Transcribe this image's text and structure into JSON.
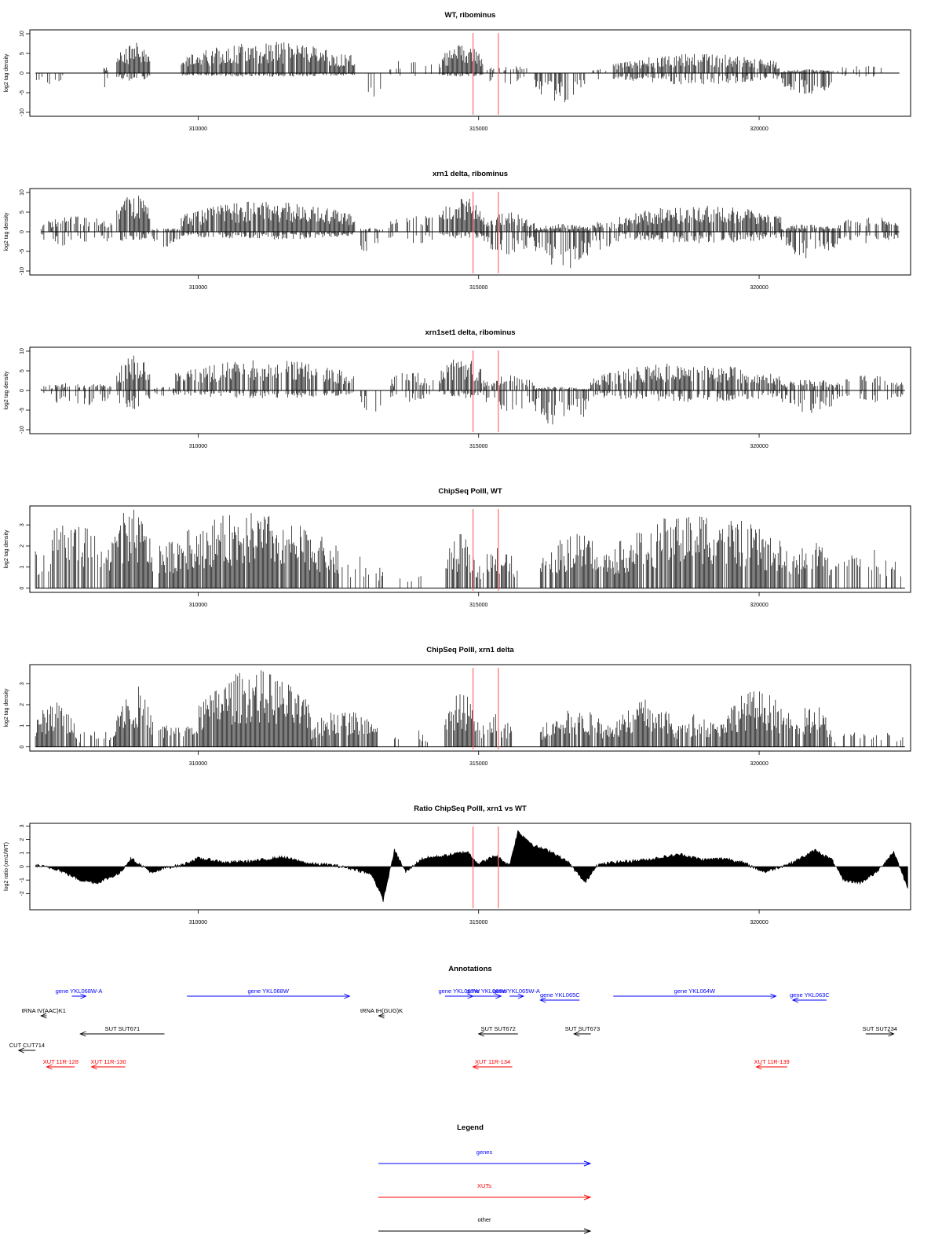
{
  "chart_data": [
    {
      "type": "bar",
      "title": "WT, ribominus",
      "ylabel": "log2 tag density",
      "ylim": [
        -11,
        11
      ],
      "yticks": [
        -10,
        -5,
        0,
        5,
        10
      ],
      "xlim": [
        307000,
        322700
      ],
      "xticks": [
        310000,
        315000,
        320000
      ],
      "marker_lines": [
        314900,
        315350
      ],
      "regions": [
        {
          "start": 307100,
          "end": 307600,
          "min": -3,
          "max": 0,
          "density": 0.35
        },
        {
          "start": 308300,
          "end": 308400,
          "min": -4,
          "max": 2,
          "density": 0.6
        },
        {
          "start": 308550,
          "end": 309150,
          "min": -2,
          "max": 8,
          "density": 0.95
        },
        {
          "start": 309150,
          "end": 309350,
          "min": -2,
          "max": 0,
          "density": 0.3
        },
        {
          "start": 309700,
          "end": 312800,
          "min": -1,
          "max": 8,
          "density": 0.9
        },
        {
          "start": 313000,
          "end": 313300,
          "min": -7,
          "max": 0,
          "density": 0.4
        },
        {
          "start": 313400,
          "end": 314200,
          "min": -1,
          "max": 4,
          "density": 0.2
        },
        {
          "start": 314300,
          "end": 315100,
          "min": -1,
          "max": 7.5,
          "density": 0.95
        },
        {
          "start": 315100,
          "end": 315900,
          "min": -3,
          "max": 2,
          "density": 0.3
        },
        {
          "start": 316000,
          "end": 316900,
          "min": -8,
          "max": 0,
          "density": 0.95
        },
        {
          "start": 317000,
          "end": 317300,
          "min": -3,
          "max": 1,
          "density": 0.3
        },
        {
          "start": 317400,
          "end": 320400,
          "min": -3,
          "max": 5,
          "density": 0.85
        },
        {
          "start": 320400,
          "end": 321300,
          "min": -6,
          "max": 1,
          "density": 0.8
        },
        {
          "start": 321300,
          "end": 322500,
          "min": -1,
          "max": 2,
          "density": 0.15
        }
      ]
    },
    {
      "type": "bar",
      "title": "xrn1 delta, ribominus",
      "ylabel": "log2 tag density",
      "ylim": [
        -11,
        11
      ],
      "yticks": [
        -10,
        -5,
        0,
        5,
        10
      ],
      "xlim": [
        307000,
        322700
      ],
      "xticks": [
        310000,
        315000,
        320000
      ],
      "marker_lines": [
        314900,
        315350
      ],
      "regions": [
        {
          "start": 307200,
          "end": 308500,
          "min": -4,
          "max": 4,
          "density": 0.7
        },
        {
          "start": 308550,
          "end": 309150,
          "min": -3,
          "max": 10,
          "density": 0.95
        },
        {
          "start": 309150,
          "end": 309700,
          "min": -4,
          "max": 1,
          "density": 0.5
        },
        {
          "start": 309700,
          "end": 312800,
          "min": -2,
          "max": 8,
          "density": 0.95
        },
        {
          "start": 312800,
          "end": 313300,
          "min": -7,
          "max": 1,
          "density": 0.5
        },
        {
          "start": 313400,
          "end": 314300,
          "min": -3,
          "max": 5,
          "density": 0.4
        },
        {
          "start": 314300,
          "end": 315100,
          "min": -2,
          "max": 9,
          "density": 0.95
        },
        {
          "start": 315100,
          "end": 316000,
          "min": -6,
          "max": 5,
          "density": 0.8
        },
        {
          "start": 316000,
          "end": 317000,
          "min": -10,
          "max": 2,
          "density": 0.95
        },
        {
          "start": 317000,
          "end": 317500,
          "min": -5,
          "max": 3,
          "density": 0.7
        },
        {
          "start": 317500,
          "end": 320400,
          "min": -3,
          "max": 7,
          "density": 0.9
        },
        {
          "start": 320400,
          "end": 321400,
          "min": -7,
          "max": 2,
          "density": 0.85
        },
        {
          "start": 321400,
          "end": 322500,
          "min": -3,
          "max": 4,
          "density": 0.5
        }
      ]
    },
    {
      "type": "bar",
      "title": "xrn1set1 delta, ribominus",
      "ylabel": "log2 tag density",
      "ylim": [
        -11,
        11
      ],
      "yticks": [
        -10,
        -5,
        0,
        5,
        10
      ],
      "xlim": [
        307000,
        322700
      ],
      "xticks": [
        310000,
        315000,
        320000
      ],
      "marker_lines": [
        314900,
        315350
      ],
      "regions": [
        {
          "start": 307200,
          "end": 308500,
          "min": -4,
          "max": 2,
          "density": 0.5
        },
        {
          "start": 308550,
          "end": 309150,
          "min": -5,
          "max": 9,
          "density": 0.9
        },
        {
          "start": 309150,
          "end": 309600,
          "min": -2,
          "max": 1,
          "density": 0.3
        },
        {
          "start": 309600,
          "end": 312800,
          "min": -2,
          "max": 8,
          "density": 0.75
        },
        {
          "start": 312900,
          "end": 313300,
          "min": -6,
          "max": 0,
          "density": 0.4
        },
        {
          "start": 313400,
          "end": 314200,
          "min": -3,
          "max": 5,
          "density": 0.4
        },
        {
          "start": 314300,
          "end": 315100,
          "min": -2,
          "max": 8.5,
          "density": 0.9
        },
        {
          "start": 315100,
          "end": 316000,
          "min": -6,
          "max": 4,
          "density": 0.7
        },
        {
          "start": 316000,
          "end": 317000,
          "min": -10,
          "max": 1,
          "density": 0.9
        },
        {
          "start": 317000,
          "end": 320400,
          "min": -3,
          "max": 7,
          "density": 0.8
        },
        {
          "start": 320400,
          "end": 321400,
          "min": -6,
          "max": 3,
          "density": 0.7
        },
        {
          "start": 321400,
          "end": 322600,
          "min": -3,
          "max": 4,
          "density": 0.4
        }
      ]
    },
    {
      "type": "bar",
      "title": "ChipSeq PolII, WT",
      "ylabel": "log2 tag density",
      "ylim": [
        -0.2,
        3.9
      ],
      "yticks": [
        0,
        1,
        2,
        3
      ],
      "xlim": [
        307000,
        322700
      ],
      "xticks": [
        310000,
        315000,
        320000
      ],
      "marker_lines": [
        314900,
        315350
      ],
      "regions": [
        {
          "start": 307100,
          "end": 308400,
          "min": 0,
          "max": 3.2,
          "density": 0.6
        },
        {
          "start": 308400,
          "end": 309200,
          "min": 0,
          "max": 3.8,
          "density": 0.95
        },
        {
          "start": 309300,
          "end": 312500,
          "min": 0,
          "max": 3.6,
          "density": 0.95
        },
        {
          "start": 312500,
          "end": 313300,
          "min": 0,
          "max": 1.6,
          "density": 0.3
        },
        {
          "start": 313600,
          "end": 314000,
          "min": 0,
          "max": 1,
          "density": 0.15
        },
        {
          "start": 314400,
          "end": 315000,
          "min": 0,
          "max": 2.6,
          "density": 0.9
        },
        {
          "start": 315000,
          "end": 315700,
          "min": 0,
          "max": 2,
          "density": 0.6
        },
        {
          "start": 316100,
          "end": 317400,
          "min": 0,
          "max": 2.6,
          "density": 0.8
        },
        {
          "start": 317400,
          "end": 320500,
          "min": 0,
          "max": 3.7,
          "density": 0.9
        },
        {
          "start": 320500,
          "end": 321300,
          "min": 0,
          "max": 2.3,
          "density": 0.7
        },
        {
          "start": 321300,
          "end": 322600,
          "min": 0,
          "max": 2,
          "density": 0.3
        }
      ]
    },
    {
      "type": "bar",
      "title": "ChipSeq PolII, xrn1 delta",
      "ylabel": "log2 tag density",
      "ylim": [
        -0.2,
        3.9
      ],
      "yticks": [
        0,
        1,
        2,
        3
      ],
      "xlim": [
        307000,
        322700
      ],
      "xticks": [
        310000,
        315000,
        320000
      ],
      "marker_lines": [
        314900,
        315350
      ],
      "regions": [
        {
          "start": 307100,
          "end": 307800,
          "min": 0,
          "max": 2.2,
          "density": 0.8
        },
        {
          "start": 307800,
          "end": 308500,
          "min": 0,
          "max": 1,
          "density": 0.4
        },
        {
          "start": 308500,
          "end": 309200,
          "min": 0,
          "max": 3,
          "density": 0.95
        },
        {
          "start": 309300,
          "end": 310000,
          "min": 0,
          "max": 1.5,
          "density": 0.7
        },
        {
          "start": 310000,
          "end": 312000,
          "min": 0,
          "max": 3.7,
          "density": 0.95
        },
        {
          "start": 312000,
          "end": 313200,
          "min": 0,
          "max": 1.8,
          "density": 0.8
        },
        {
          "start": 313500,
          "end": 314200,
          "min": 0,
          "max": 0.8,
          "density": 0.2
        },
        {
          "start": 314400,
          "end": 315000,
          "min": 0,
          "max": 2.6,
          "density": 0.95
        },
        {
          "start": 315000,
          "end": 315600,
          "min": 0,
          "max": 1.6,
          "density": 0.7
        },
        {
          "start": 316100,
          "end": 317400,
          "min": 0,
          "max": 1.8,
          "density": 0.8
        },
        {
          "start": 317400,
          "end": 318500,
          "min": 0,
          "max": 2.3,
          "density": 0.9
        },
        {
          "start": 318500,
          "end": 319300,
          "min": 0,
          "max": 1.6,
          "density": 0.7
        },
        {
          "start": 319300,
          "end": 320600,
          "min": 0,
          "max": 2.7,
          "density": 0.95
        },
        {
          "start": 320600,
          "end": 321300,
          "min": 0,
          "max": 2,
          "density": 0.8
        },
        {
          "start": 321300,
          "end": 322600,
          "min": 0,
          "max": 0.8,
          "density": 0.3
        }
      ]
    },
    {
      "type": "area",
      "title": "Ratio ChipSeq PolII, xrn1 vs WT",
      "ylabel": "log2 ratio (xrn1/WT)",
      "ylim": [
        -3.2,
        3.2
      ],
      "yticks": [
        -2,
        -1,
        0,
        1,
        2,
        3
      ],
      "xlim": [
        307000,
        322700
      ],
      "xticks": [
        310000,
        315000,
        320000
      ],
      "marker_lines": [
        314900,
        315350
      ],
      "x": [
        307100,
        307500,
        307900,
        308200,
        308600,
        308800,
        309200,
        309400,
        309700,
        310000,
        310200,
        310500,
        311000,
        311500,
        312000,
        312400,
        312800,
        313100,
        313300,
        313500,
        313700,
        314000,
        314400,
        314800,
        315000,
        315300,
        315550,
        315700,
        316000,
        316300,
        316600,
        316900,
        317100,
        317400,
        318000,
        318600,
        319000,
        319400,
        319700,
        320100,
        320600,
        321000,
        321300,
        321500,
        321800,
        322100,
        322400,
        322650
      ],
      "y": [
        0.1,
        -0.2,
        -1.0,
        -1.2,
        -0.5,
        0.6,
        -0.5,
        -0.1,
        0.1,
        0.6,
        0.5,
        0.3,
        0.4,
        0.7,
        0.2,
        0.1,
        -0.2,
        -0.6,
        -2.5,
        1.2,
        -0.4,
        0.6,
        0.8,
        1.1,
        0.2,
        0.8,
        0.1,
        2.6,
        1.5,
        1.1,
        0.3,
        -1.2,
        0.1,
        0.3,
        0.5,
        0.9,
        0.5,
        0.6,
        0.3,
        -0.4,
        0.3,
        1.2,
        0.5,
        -1.0,
        -1.2,
        -0.4,
        1.1,
        -1.6
      ]
    }
  ],
  "annotations": {
    "title": "Annotations",
    "items": [
      {
        "label": "gene YKL068W-A",
        "color": "#0000ff",
        "start": 307750,
        "end": 308000,
        "dir": "right",
        "row": 0
      },
      {
        "label": "gene YKL068W",
        "color": "#0000ff",
        "start": 309800,
        "end": 312700,
        "dir": "right",
        "row": 0
      },
      {
        "label": "gene YKL067W",
        "color": "#0000ff",
        "start": 314400,
        "end": 314900,
        "dir": "right",
        "row": 0
      },
      {
        "label": "gene YKL066W",
        "color": "#0000ff",
        "start": 314900,
        "end": 315400,
        "dir": "right",
        "row": 0
      },
      {
        "label": "gene YKL065W-A",
        "color": "#0000ff",
        "start": 315550,
        "end": 315800,
        "dir": "right",
        "row": 0
      },
      {
        "label": "gene YKL065C",
        "color": "#0000ff",
        "start": 316100,
        "end": 316800,
        "dir": "left",
        "row": 1
      },
      {
        "label": "gene YKL064W",
        "color": "#0000ff",
        "start": 317400,
        "end": 320300,
        "dir": "right",
        "row": 0
      },
      {
        "label": "gene YKL063C",
        "color": "#0000ff",
        "start": 320600,
        "end": 321200,
        "dir": "left",
        "row": 1
      },
      {
        "label": "tRNA tV(AAC)K1",
        "color": "#000000",
        "start": 307200,
        "end": 307300,
        "dir": "left",
        "row": 2
      },
      {
        "label": "tRNA tH(GUG)K",
        "color": "#000000",
        "start": 313220,
        "end": 313320,
        "dir": "left",
        "row": 2
      },
      {
        "label": "SUT SUT671",
        "color": "#000000",
        "start": 307900,
        "end": 309400,
        "dir": "left",
        "row": 3
      },
      {
        "label": "SUT SUT672",
        "color": "#000000",
        "start": 315000,
        "end": 315700,
        "dir": "left",
        "row": 3
      },
      {
        "label": "SUT SUT673",
        "color": "#000000",
        "start": 316700,
        "end": 317000,
        "dir": "left",
        "row": 3
      },
      {
        "label": "SUT SUT234",
        "color": "#000000",
        "start": 321900,
        "end": 322400,
        "dir": "right",
        "row": 3
      },
      {
        "label": "CUT CUT714",
        "color": "#000000",
        "start": 306800,
        "end": 307100,
        "dir": "left",
        "row": 4
      },
      {
        "label": "XUT 11R-128",
        "color": "#ff0000",
        "start": 307300,
        "end": 307800,
        "dir": "left",
        "row": 5
      },
      {
        "label": "XUT 11R-130",
        "color": "#ff0000",
        "start": 308100,
        "end": 308700,
        "dir": "left",
        "row": 5
      },
      {
        "label": "XUT 11R-134",
        "color": "#ff0000",
        "start": 314900,
        "end": 315600,
        "dir": "left",
        "row": 5
      },
      {
        "label": "XUT 11R-139",
        "color": "#ff0000",
        "start": 319950,
        "end": 320500,
        "dir": "left",
        "row": 5
      }
    ]
  },
  "legend": {
    "title": "Legend",
    "items": [
      {
        "label": "genes",
        "color": "#0000ff"
      },
      {
        "label": "XUTs",
        "color": "#ff0000"
      },
      {
        "label": "other",
        "color": "#000000"
      }
    ]
  },
  "colors": {
    "marker": "#ff6b6b",
    "bars": "#000000",
    "axis": "#000000"
  }
}
